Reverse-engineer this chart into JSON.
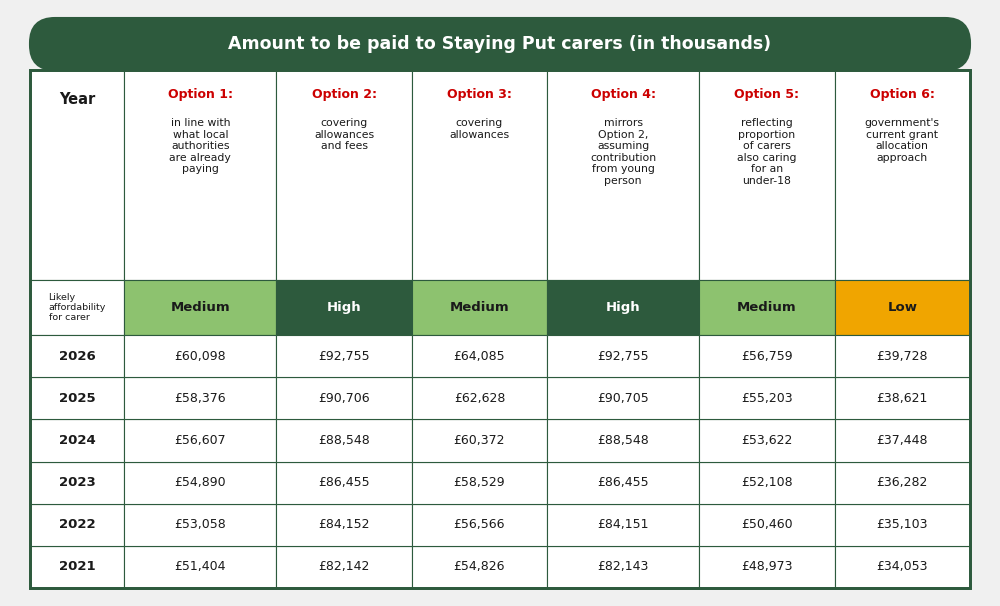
{
  "title": "Amount to be paid to Staying Put carers (in thousands)",
  "title_bg": "#2d5a3d",
  "title_color": "#ffffff",
  "col_headers": [
    "Year",
    "Option 1:",
    "Option 2:",
    "Option 3:",
    "Option 4:",
    "Option 5:",
    "Option 6:"
  ],
  "col_subtitles": [
    "",
    "in line with\nwhat local\nauthorities\nare already\npaying",
    "covering\nallowances\nand fees",
    "covering\nallowances",
    "mirrors\nOption 2,\nassuming\ncontribution\nfrom young\nperson",
    "reflecting\nproportion\nof carers\nalso caring\nfor an\nunder-18",
    "government's\ncurrent grant\nallocation\napproach"
  ],
  "affordability_label": "Likely\naffordability\nfor carer",
  "affordability_values": [
    "Medium",
    "High",
    "Medium",
    "High",
    "Medium",
    "Low"
  ],
  "affordability_colors": [
    "#8dc26f",
    "#2d5a3d",
    "#8dc26f",
    "#2d5a3d",
    "#8dc26f",
    "#f0a500"
  ],
  "affordability_text_colors": [
    "#1a1a1a",
    "#ffffff",
    "#1a1a1a",
    "#ffffff",
    "#1a1a1a",
    "#1a1a1a"
  ],
  "years": [
    "2021",
    "2022",
    "2023",
    "2024",
    "2025",
    "2026"
  ],
  "data": [
    [
      "£51,404",
      "£82,142",
      "£54,826",
      "£82,143",
      "£48,973",
      "£34,053"
    ],
    [
      "£53,058",
      "£84,152",
      "£56,566",
      "£84,151",
      "£50,460",
      "£35,103"
    ],
    [
      "£54,890",
      "£86,455",
      "£58,529",
      "£86,455",
      "£52,108",
      "£36,282"
    ],
    [
      "£56,607",
      "£88,548",
      "£60,372",
      "£88,548",
      "£53,622",
      "£37,448"
    ],
    [
      "£58,376",
      "£90,706",
      "£62,628",
      "£90,705",
      "£55,203",
      "£38,621"
    ],
    [
      "£60,098",
      "£92,755",
      "£64,085",
      "£92,755",
      "£56,759",
      "£39,728"
    ]
  ],
  "option_header_color": "#cc0000",
  "border_color": "#2d5a3d",
  "outer_bg": "#f0f0f0",
  "cell_bg": "#ffffff"
}
